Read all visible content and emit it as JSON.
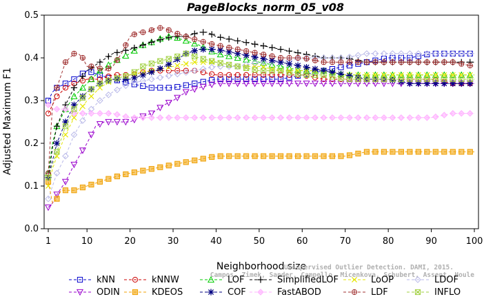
{
  "chart_data": {
    "type": "line",
    "title": "PageBlocks_norm_05_v08",
    "xlabel": "Neighborhood size",
    "ylabel": "Adjusted Maximum F1",
    "xlim": [
      1,
      100
    ],
    "ylim": [
      0,
      0.5
    ],
    "xticks": [
      1,
      10,
      20,
      30,
      40,
      50,
      60,
      70,
      80,
      90,
      100
    ],
    "yticks": [
      0.0,
      0.1,
      0.2,
      0.3,
      0.4,
      0.5
    ],
    "ytick_labels": [
      "0.0",
      "0.1",
      "0.2",
      "0.3",
      "0.4",
      "0.5"
    ],
    "grid": false,
    "legend_position": "bottom",
    "watermark": [
      "Unsupervised Outlier Detection. DAMI, 2015.",
      "Campos, Zimek, Sander, Campello, Micenkova, Schubert, Assent, Houle"
    ],
    "series": [
      {
        "name": "kNN",
        "color": "#0000cc",
        "marker": "square",
        "x": [
          1,
          2,
          3,
          5,
          7,
          10,
          13,
          16,
          20,
          25,
          30,
          35,
          40,
          45,
          50,
          55,
          60,
          65,
          70,
          75,
          80,
          85,
          90,
          95,
          100
        ],
        "y": [
          0.3,
          0.32,
          0.33,
          0.34,
          0.35,
          0.37,
          0.36,
          0.35,
          0.34,
          0.33,
          0.33,
          0.34,
          0.35,
          0.35,
          0.35,
          0.35,
          0.36,
          0.37,
          0.38,
          0.39,
          0.4,
          0.4,
          0.41,
          0.41,
          0.41
        ]
      },
      {
        "name": "kNNW",
        "color": "#cc0000",
        "marker": "circle",
        "x": [
          1,
          2,
          3,
          5,
          7,
          10,
          13,
          16,
          20,
          25,
          30,
          35,
          40,
          45,
          50,
          55,
          60,
          65,
          70,
          75,
          80,
          85,
          90,
          95,
          100
        ],
        "y": [
          0.27,
          0.29,
          0.31,
          0.33,
          0.34,
          0.35,
          0.35,
          0.36,
          0.36,
          0.37,
          0.37,
          0.37,
          0.36,
          0.36,
          0.36,
          0.36,
          0.36,
          0.35,
          0.35,
          0.35,
          0.35,
          0.35,
          0.35,
          0.34,
          0.34
        ]
      },
      {
        "name": "LOF",
        "color": "#00cc00",
        "marker": "triangle-up",
        "x": [
          1,
          2,
          3,
          5,
          7,
          10,
          13,
          16,
          20,
          23,
          26,
          28,
          30,
          33,
          36,
          40,
          45,
          50,
          55,
          60,
          65,
          70,
          75,
          80,
          85,
          90,
          95,
          100
        ],
        "y": [
          0.13,
          0.2,
          0.24,
          0.28,
          0.31,
          0.34,
          0.37,
          0.39,
          0.41,
          0.43,
          0.44,
          0.45,
          0.45,
          0.44,
          0.43,
          0.41,
          0.4,
          0.39,
          0.38,
          0.37,
          0.37,
          0.36,
          0.36,
          0.36,
          0.36,
          0.36,
          0.36,
          0.36
        ]
      },
      {
        "name": "SimplifiedLOF",
        "color": "#000000",
        "marker": "plus",
        "x": [
          1,
          2,
          3,
          5,
          7,
          10,
          13,
          16,
          20,
          23,
          26,
          30,
          33,
          36,
          38,
          40,
          45,
          50,
          55,
          60,
          65,
          70,
          75,
          80,
          85,
          90,
          95,
          100
        ],
        "y": [
          0.12,
          0.19,
          0.24,
          0.29,
          0.33,
          0.37,
          0.39,
          0.41,
          0.42,
          0.43,
          0.44,
          0.45,
          0.45,
          0.46,
          0.46,
          0.45,
          0.44,
          0.43,
          0.42,
          0.41,
          0.4,
          0.4,
          0.39,
          0.39,
          0.39,
          0.39,
          0.39,
          0.39
        ]
      },
      {
        "name": "LoOP",
        "color": "#e6e600",
        "marker": "x",
        "x": [
          1,
          2,
          3,
          5,
          7,
          10,
          13,
          16,
          20,
          25,
          30,
          35,
          40,
          45,
          50,
          55,
          60,
          65,
          70,
          75,
          80,
          85,
          90,
          95,
          100
        ],
        "y": [
          0.1,
          0.14,
          0.17,
          0.22,
          0.26,
          0.3,
          0.33,
          0.35,
          0.36,
          0.37,
          0.38,
          0.39,
          0.39,
          0.38,
          0.38,
          0.37,
          0.37,
          0.37,
          0.36,
          0.36,
          0.36,
          0.36,
          0.36,
          0.36,
          0.36
        ]
      },
      {
        "name": "LDOF",
        "color": "#b8b8e8",
        "marker": "diamond",
        "x": [
          1,
          2,
          3,
          5,
          7,
          10,
          13,
          16,
          20,
          25,
          30,
          35,
          40,
          45,
          50,
          55,
          60,
          65,
          70,
          75,
          80,
          85,
          90,
          95,
          100
        ],
        "y": [
          0.07,
          0.1,
          0.13,
          0.17,
          0.22,
          0.27,
          0.3,
          0.32,
          0.34,
          0.35,
          0.36,
          0.37,
          0.38,
          0.38,
          0.39,
          0.39,
          0.4,
          0.4,
          0.4,
          0.41,
          0.41,
          0.41,
          0.41,
          0.41,
          0.41
        ]
      },
      {
        "name": "ODIN",
        "color": "#9900cc",
        "marker": "triangle-down",
        "x": [
          1,
          2,
          3,
          5,
          7,
          10,
          12,
          14,
          16,
          18,
          20,
          22,
          25,
          28,
          30,
          33,
          36,
          40,
          45,
          50,
          55,
          60,
          65,
          70,
          75,
          80,
          85,
          90,
          95,
          100
        ],
        "y": [
          0.05,
          0.06,
          0.08,
          0.11,
          0.15,
          0.2,
          0.24,
          0.25,
          0.25,
          0.25,
          0.25,
          0.26,
          0.27,
          0.29,
          0.3,
          0.32,
          0.33,
          0.34,
          0.34,
          0.34,
          0.34,
          0.34,
          0.34,
          0.34,
          0.34,
          0.34,
          0.34,
          0.34,
          0.34,
          0.34
        ]
      },
      {
        "name": "KDEOS",
        "color": "#f0a000",
        "marker": "square-filled",
        "x": [
          1,
          2,
          3,
          4,
          5,
          7,
          10,
          13,
          16,
          20,
          25,
          30,
          35,
          40,
          45,
          50,
          55,
          60,
          65,
          70,
          75,
          80,
          85,
          90,
          95,
          100
        ],
        "y": [
          0.11,
          0.06,
          0.07,
          0.09,
          0.09,
          0.09,
          0.1,
          0.11,
          0.12,
          0.13,
          0.14,
          0.15,
          0.16,
          0.17,
          0.17,
          0.17,
          0.17,
          0.17,
          0.17,
          0.17,
          0.18,
          0.18,
          0.18,
          0.18,
          0.18,
          0.18
        ]
      },
      {
        "name": "COF",
        "color": "#000080",
        "marker": "star",
        "x": [
          1,
          2,
          3,
          5,
          7,
          10,
          13,
          16,
          20,
          23,
          26,
          28,
          30,
          33,
          36,
          40,
          45,
          50,
          55,
          60,
          65,
          70,
          75,
          80,
          85,
          90,
          95,
          100
        ],
        "y": [
          0.12,
          0.16,
          0.2,
          0.25,
          0.29,
          0.32,
          0.34,
          0.35,
          0.35,
          0.36,
          0.37,
          0.38,
          0.39,
          0.41,
          0.42,
          0.42,
          0.41,
          0.4,
          0.39,
          0.38,
          0.37,
          0.36,
          0.35,
          0.35,
          0.34,
          0.34,
          0.34,
          0.34
        ]
      },
      {
        "name": "FastABOD",
        "color": "#ffb0ff",
        "marker": "diamond-filled",
        "x": [
          1,
          2,
          3,
          5,
          7,
          10,
          13,
          16,
          20,
          25,
          30,
          35,
          40,
          45,
          50,
          55,
          60,
          65,
          70,
          75,
          80,
          85,
          90,
          95,
          100
        ],
        "y": [
          0.29,
          0.28,
          0.28,
          0.28,
          0.27,
          0.27,
          0.27,
          0.27,
          0.26,
          0.26,
          0.26,
          0.26,
          0.26,
          0.26,
          0.26,
          0.26,
          0.26,
          0.26,
          0.26,
          0.26,
          0.26,
          0.26,
          0.26,
          0.27,
          0.27
        ]
      },
      {
        "name": "LDF",
        "color": "#a03030",
        "marker": "circle-plus",
        "x": [
          1,
          2,
          3,
          4,
          5,
          6,
          7,
          8,
          9,
          10,
          12,
          14,
          16,
          18,
          20,
          22,
          24,
          26,
          28,
          30,
          33,
          36,
          40,
          45,
          50,
          55,
          60,
          65,
          70,
          75,
          80,
          85,
          90,
          95,
          100
        ],
        "y": [
          0.13,
          0.29,
          0.33,
          0.36,
          0.39,
          0.4,
          0.41,
          0.41,
          0.4,
          0.38,
          0.38,
          0.37,
          0.38,
          0.41,
          0.45,
          0.46,
          0.46,
          0.47,
          0.47,
          0.46,
          0.45,
          0.44,
          0.43,
          0.42,
          0.41,
          0.4,
          0.4,
          0.39,
          0.39,
          0.39,
          0.39,
          0.39,
          0.39,
          0.39,
          0.38
        ]
      },
      {
        "name": "INFLO",
        "color": "#a0d040",
        "marker": "x-square",
        "x": [
          1,
          2,
          3,
          5,
          7,
          10,
          13,
          16,
          20,
          23,
          26,
          30,
          33,
          36,
          40,
          45,
          50,
          55,
          60,
          65,
          70,
          75,
          80,
          85,
          90,
          95,
          100
        ],
        "y": [
          0.12,
          0.15,
          0.18,
          0.24,
          0.28,
          0.32,
          0.34,
          0.35,
          0.36,
          0.38,
          0.39,
          0.4,
          0.41,
          0.4,
          0.39,
          0.38,
          0.37,
          0.37,
          0.36,
          0.36,
          0.35,
          0.35,
          0.35,
          0.35,
          0.35,
          0.35,
          0.35
        ]
      }
    ]
  }
}
